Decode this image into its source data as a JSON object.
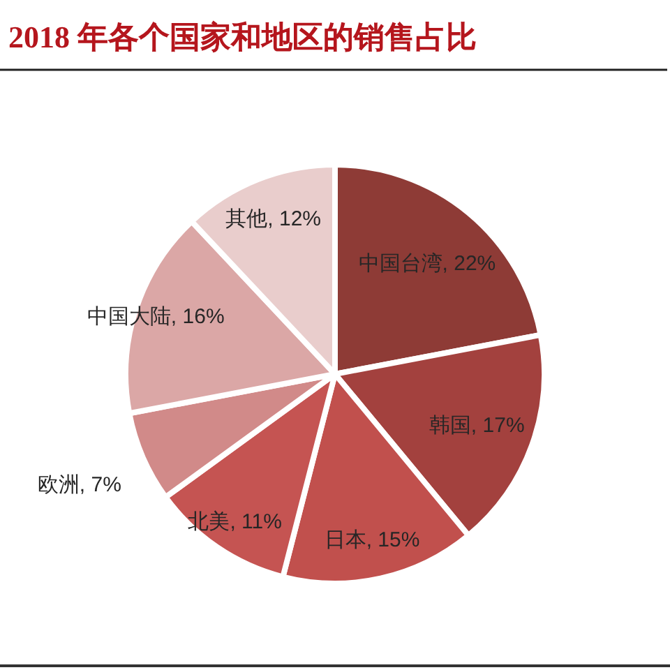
{
  "chart_data": {
    "type": "pie",
    "title": "2018 年各个国家和地区的销售占比",
    "categories": [
      "中国台湾",
      "韩国",
      "日本",
      "北美",
      "欧洲",
      "中国大陆",
      "其他"
    ],
    "values": [
      22,
      17,
      15,
      11,
      7,
      16,
      12
    ],
    "value_labels": [
      "22%",
      "17%",
      "15%",
      "11%",
      "7%",
      "16%",
      "12%"
    ],
    "colors": [
      "#8e3b36",
      "#a3413e",
      "#c1504d",
      "#c55452",
      "#d18a89",
      "#dba7a6",
      "#e9cdcc"
    ]
  }
}
